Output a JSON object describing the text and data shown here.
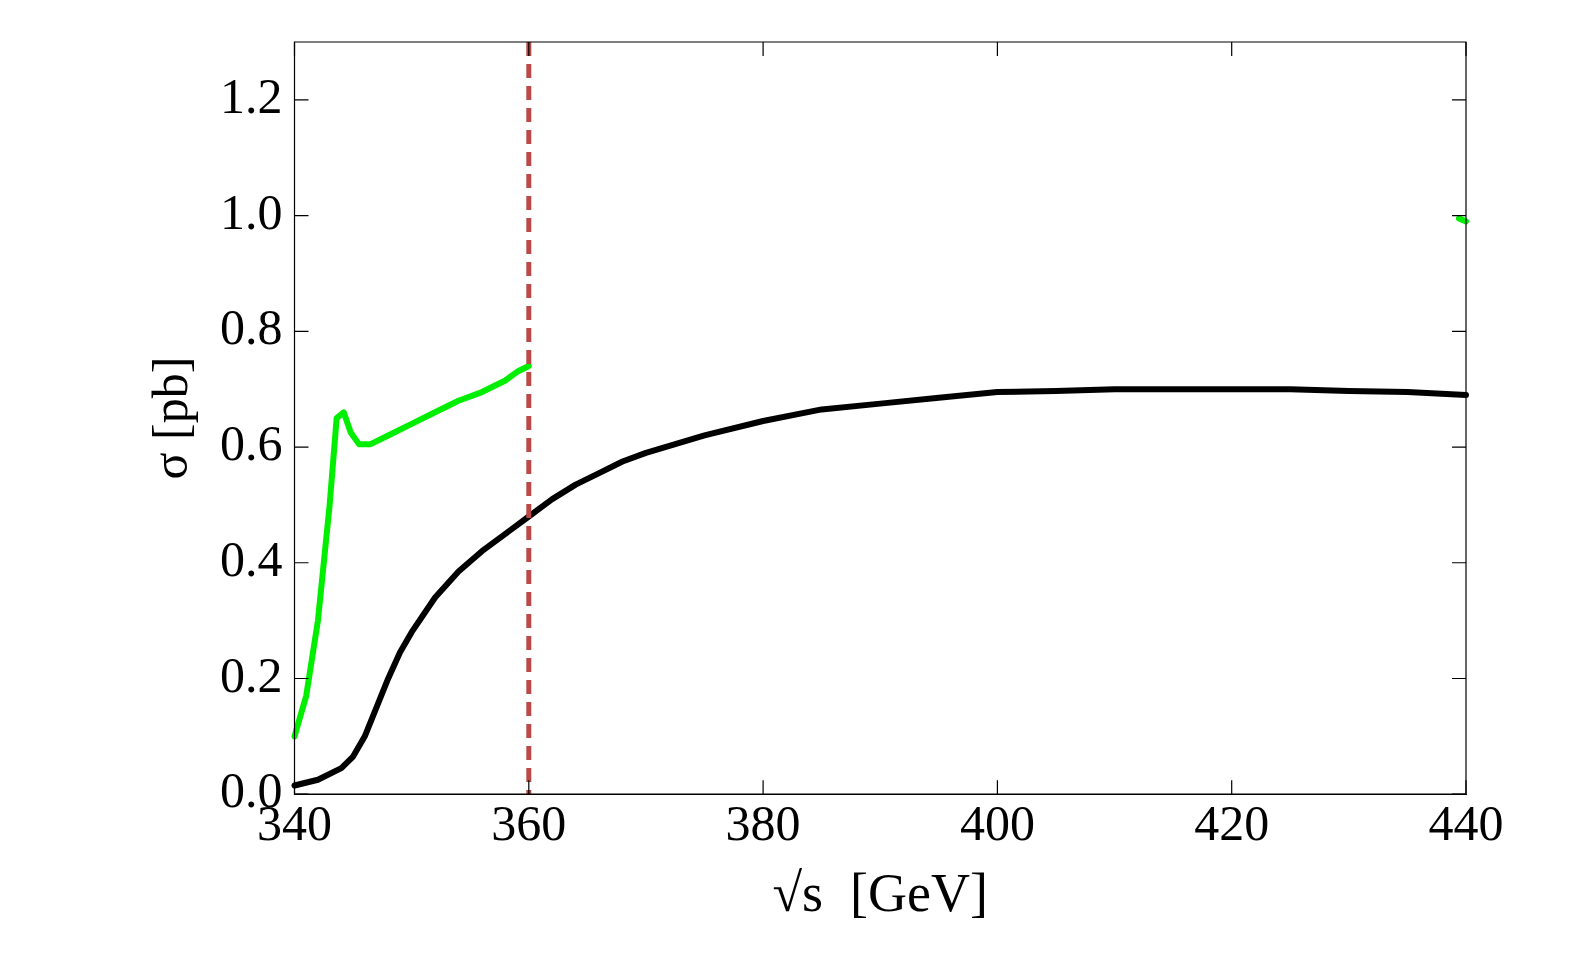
{
  "chart_data": {
    "type": "line",
    "xlabel": "√s  [GeV]",
    "ylabel": "σ [pb]",
    "xlim": [
      340,
      440
    ],
    "xticks": [
      340,
      360,
      380,
      400,
      420,
      440
    ],
    "ylim": [
      0,
      1.3
    ],
    "yticks": [
      {
        "value": 0,
        "label": "0.0"
      },
      0.2,
      0.4,
      0.6,
      0.8,
      {
        "value": 1,
        "label": "1.0"
      },
      1.2
    ],
    "grid": false,
    "legend": false,
    "marker": "none",
    "line_style": "solid",
    "series": [
      {
        "color": "#00ee00",
        "x": [
          340,
          341,
          342,
          343,
          343.6,
          344.2,
          344.8,
          345.5,
          346.5,
          348,
          350,
          352,
          354,
          356,
          358,
          359,
          360,
          null,
          439.4,
          440
        ],
        "values": [
          0.1,
          0.17,
          0.3,
          0.5,
          0.65,
          0.66,
          0.625,
          0.605,
          0.605,
          0.62,
          0.64,
          0.66,
          0.68,
          0.695,
          0.715,
          0.73,
          0.74,
          null,
          0.995,
          0.99
        ]
      },
      {
        "color": "#000000",
        "x": [
          340,
          342,
          344,
          345,
          346,
          347,
          348,
          349,
          350,
          352,
          354,
          356,
          358,
          360,
          362,
          364,
          366,
          368,
          370,
          375,
          380,
          385,
          390,
          395,
          400,
          405,
          410,
          415,
          420,
          425,
          430,
          435,
          440
        ],
        "values": [
          0.015,
          0.025,
          0.045,
          0.065,
          0.1,
          0.15,
          0.2,
          0.245,
          0.28,
          0.34,
          0.385,
          0.42,
          0.45,
          0.48,
          0.51,
          0.535,
          0.555,
          0.575,
          0.59,
          0.62,
          0.645,
          0.665,
          0.675,
          0.685,
          0.695,
          0.697,
          0.7,
          0.7,
          0.7,
          0.7,
          0.697,
          0.695,
          0.69
        ]
      }
    ],
    "ref_lines": [
      {
        "axis": "x",
        "value": 360,
        "color": "#b94a48",
        "line_style": "dashed"
      }
    ]
  }
}
